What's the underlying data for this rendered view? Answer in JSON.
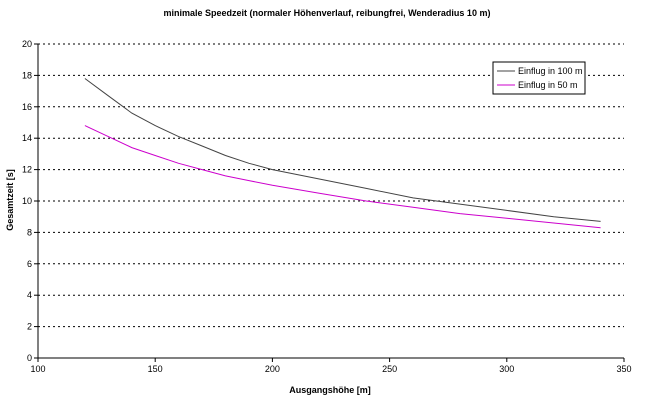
{
  "chart_data": {
    "type": "line",
    "title": "minimale Speedzeit (normaler Höhenverlauf, reibungfrei, Wenderadius 10 m)",
    "xlabel": "Ausgangshöhe [m]",
    "ylabel": "Gesamtzeit [s]",
    "xlim": [
      100,
      350
    ],
    "ylim": [
      0,
      20
    ],
    "x_ticks": [
      100,
      150,
      200,
      250,
      300,
      350
    ],
    "y_ticks": [
      0,
      2,
      4,
      6,
      8,
      10,
      12,
      14,
      16,
      18,
      20
    ],
    "grid": {
      "horizontal": true,
      "vertical": false,
      "style": "dashed"
    },
    "legend_position": "top-right",
    "series": [
      {
        "name": "Einflug in 100 m",
        "color": "#444444",
        "x": [
          120,
          130,
          140,
          150,
          160,
          170,
          180,
          190,
          200,
          220,
          240,
          260,
          280,
          300,
          320,
          340
        ],
        "y": [
          17.8,
          16.7,
          15.6,
          14.8,
          14.1,
          13.5,
          12.9,
          12.4,
          12.0,
          11.4,
          10.8,
          10.2,
          9.8,
          9.4,
          9.0,
          8.7
        ]
      },
      {
        "name": "Einflug in 50 m",
        "color": "#cc00cc",
        "x": [
          120,
          130,
          140,
          150,
          160,
          170,
          180,
          190,
          200,
          220,
          240,
          260,
          280,
          300,
          320,
          340
        ],
        "y": [
          14.8,
          14.1,
          13.4,
          12.9,
          12.4,
          12.0,
          11.6,
          11.3,
          11.0,
          10.5,
          10.0,
          9.6,
          9.2,
          8.9,
          8.6,
          8.3
        ]
      }
    ]
  }
}
